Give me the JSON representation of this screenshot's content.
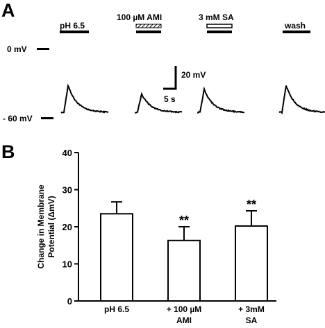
{
  "panel_a": {
    "letter": "A",
    "treatments": [
      "pH 6.5",
      "100 µM AMI",
      "3 mM SA",
      "wash"
    ],
    "zero_label": "0 mV",
    "baseline_label": "- 60 mV",
    "scale_v_label": "20 mV",
    "scale_t_label": "5 s",
    "trace_peaks_mV": [
      23.5,
      16,
      20,
      23.5
    ],
    "trace_baseline_mV": -60
  },
  "panel_b": {
    "letter": "B"
  },
  "chart_data": {
    "type": "bar",
    "categories": [
      [
        "pH 6.5"
      ],
      [
        "+ 100 µM",
        "AMI"
      ],
      [
        "+ 3mM",
        "SA"
      ]
    ],
    "values": [
      23.5,
      16.3,
      20.2
    ],
    "errors": [
      3.2,
      3.7,
      4.1
    ],
    "significance": [
      "",
      "**",
      "**"
    ],
    "ylabel": [
      "Change in Membrane",
      "Potential (ΔmV)"
    ],
    "ylim": [
      0,
      40
    ],
    "yticks": [
      0,
      10,
      20,
      30,
      40
    ],
    "bar_color": "#ffffff",
    "edge_color": "#000000"
  }
}
